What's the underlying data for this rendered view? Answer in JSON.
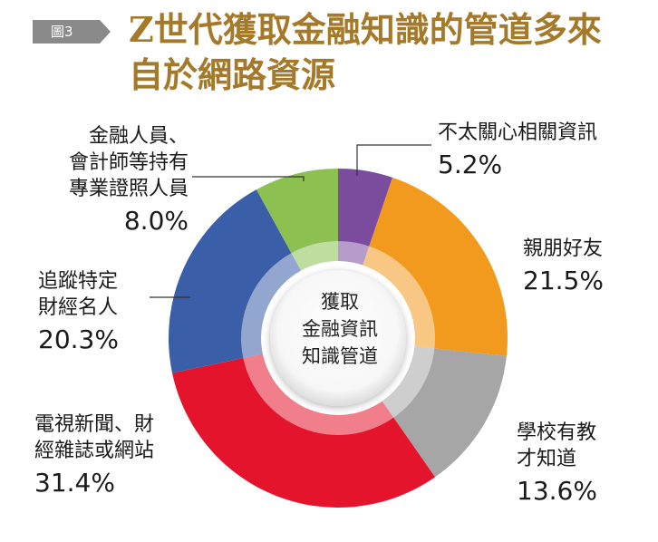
{
  "figure": {
    "badge": "圖3",
    "title_line1": "Z世代獲取金融知識的管道多來",
    "title_line2": "自於網路資源",
    "center_line1": "獲取",
    "center_line2": "金融資訊",
    "center_line3": "知識管道"
  },
  "chart_data": {
    "type": "pie",
    "title": "Z世代獲取金融知識的管道多來自於網路資源",
    "categories": [
      "不太關心相關資訊",
      "親朋好友",
      "學校有教才知道",
      "電視新聞、財經雜誌或網站",
      "追蹤特定財經名人",
      "金融人員、會計師等持有專業證照人員"
    ],
    "values": [
      5.2,
      21.5,
      13.6,
      31.4,
      20.3,
      8.0
    ],
    "unit": "%",
    "colors": [
      "#7b4b9e",
      "#f29a1e",
      "#a6a6a6",
      "#e3142c",
      "#3a5ea8",
      "#8cc152"
    ],
    "labels": [
      {
        "lines": [
          "不太關心相關資訊"
        ],
        "pct": "5.2%"
      },
      {
        "lines": [
          "親朋好友"
        ],
        "pct": "21.5%"
      },
      {
        "lines": [
          "學校有教",
          "才知道"
        ],
        "pct": "13.6%"
      },
      {
        "lines": [
          "電視新聞、財",
          "經雜誌或網站"
        ],
        "pct": "31.4%"
      },
      {
        "lines": [
          "追蹤特定",
          "財經名人"
        ],
        "pct": "20.3%"
      },
      {
        "lines": [
          "金融人員、",
          "會計師等持有",
          "專業證照人員"
        ],
        "pct": "8.0%"
      }
    ]
  }
}
